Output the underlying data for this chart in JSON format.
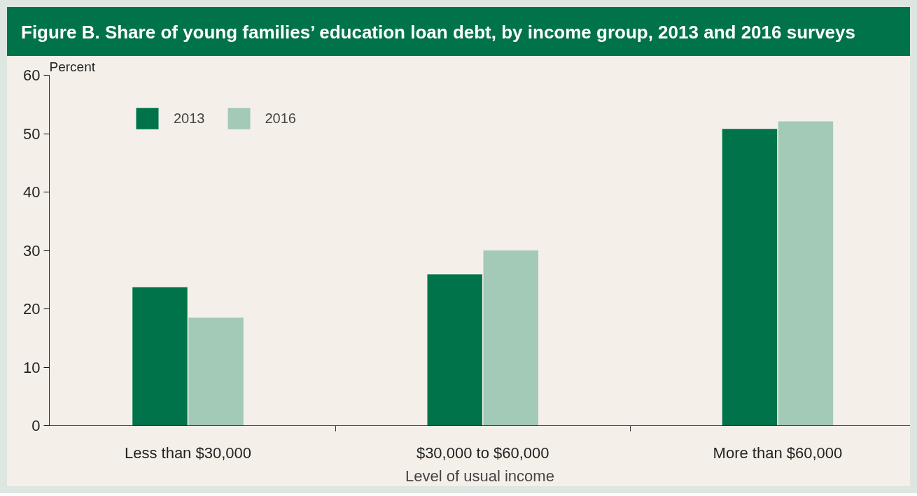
{
  "chart_data": {
    "type": "bar",
    "title": "Figure B. Share of young families’ education loan debt, by income group, 2013 and 2016 surveys",
    "ylabel": "Percent",
    "xlabel": "Level of usual income",
    "categories": [
      "Less than $30,000",
      "$30,000 to $60,000",
      "More than $60,000"
    ],
    "series": [
      {
        "name": "2013",
        "color": "#00734a",
        "values": [
          23.7,
          25.9,
          50.8
        ]
      },
      {
        "name": "2016",
        "color": "#a3c9b7",
        "values": [
          18.5,
          30,
          52.1
        ]
      }
    ],
    "ylim": [
      0,
      60
    ],
    "yticks": [
      0,
      10,
      20,
      30,
      40,
      50,
      60
    ],
    "grid": false,
    "legend": "top left"
  }
}
